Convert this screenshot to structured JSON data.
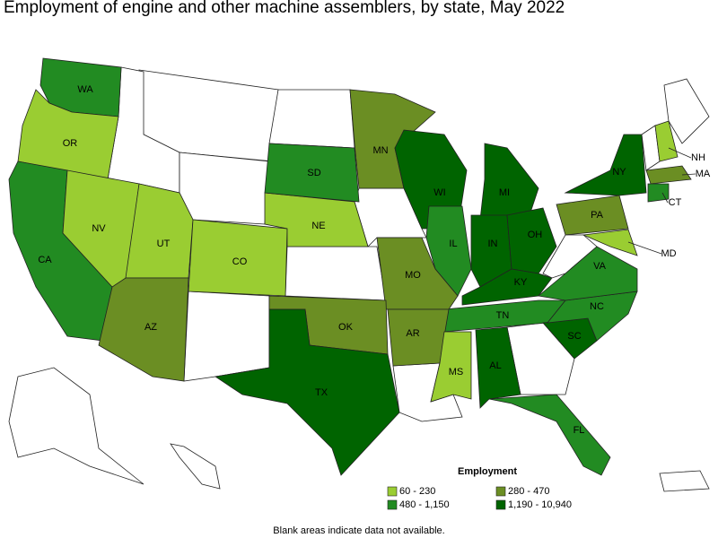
{
  "title": "Employment of engine and other machine assemblers, by state, May 2022",
  "legend": {
    "title": "Employment",
    "classes": [
      {
        "label": "60 - 230",
        "color": "#9acd32"
      },
      {
        "label": "280 - 470",
        "color": "#6b8e23"
      },
      {
        "label": "480 - 1,150",
        "color": "#228b22"
      },
      {
        "label": "1,190 - 10,940",
        "color": "#006400"
      }
    ]
  },
  "states": [
    {
      "label": "WA",
      "class": 2
    },
    {
      "label": "OR",
      "class": 0
    },
    {
      "label": "CA",
      "class": 2
    },
    {
      "label": "NV",
      "class": 0
    },
    {
      "label": "UT",
      "class": 0
    },
    {
      "label": "AZ",
      "class": 1
    },
    {
      "label": "CO",
      "class": 0
    },
    {
      "label": "NE",
      "class": 0
    },
    {
      "label": "SD",
      "class": 2
    },
    {
      "label": "MN",
      "class": 1
    },
    {
      "label": "WI",
      "class": 3
    },
    {
      "label": "MI",
      "class": 3
    },
    {
      "label": "IL",
      "class": 2
    },
    {
      "label": "IN",
      "class": 3
    },
    {
      "label": "OH",
      "class": 3
    },
    {
      "label": "KY",
      "class": 3
    },
    {
      "label": "TN",
      "class": 2
    },
    {
      "label": "MO",
      "class": 1
    },
    {
      "label": "OK",
      "class": 1
    },
    {
      "label": "AR",
      "class": 1
    },
    {
      "label": "TX",
      "class": 3
    },
    {
      "label": "MS",
      "class": 0
    },
    {
      "label": "AL",
      "class": 3
    },
    {
      "label": "FL",
      "class": 2
    },
    {
      "label": "SC",
      "class": 3
    },
    {
      "label": "NC",
      "class": 2
    },
    {
      "label": "VA",
      "class": 2
    },
    {
      "label": "PA",
      "class": 1
    },
    {
      "label": "NY",
      "class": 3
    },
    {
      "label": "NH",
      "class": 0
    },
    {
      "label": "MA",
      "class": 1
    },
    {
      "label": "CT",
      "class": 2
    },
    {
      "label": "MD",
      "class": 0
    }
  ],
  "note": "Blank areas indicate data not available."
}
